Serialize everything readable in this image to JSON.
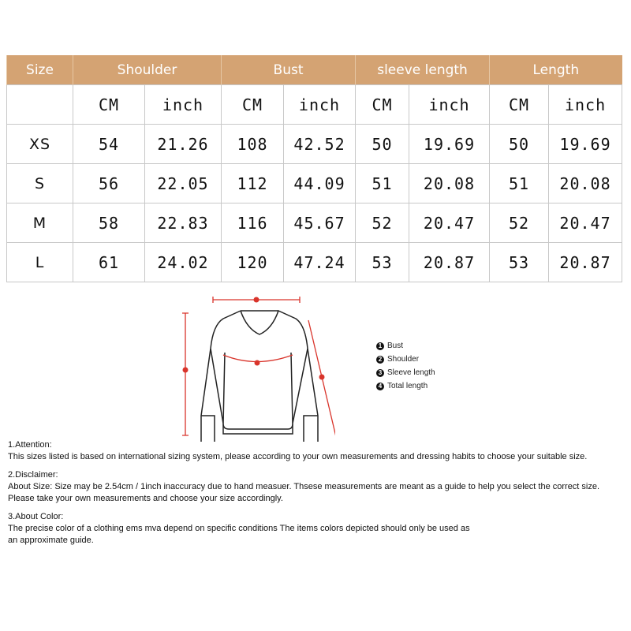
{
  "table": {
    "headers": [
      "Size",
      "Shoulder",
      "Bust",
      "sleeve length",
      "Length"
    ],
    "units": [
      "CM",
      "inch",
      "CM",
      "inch",
      "CM",
      "inch",
      "CM",
      "inch"
    ],
    "rows": [
      {
        "size": "XS",
        "values": [
          "54",
          "21.26",
          "108",
          "42.52",
          "50",
          "19.69",
          "50",
          "19.69"
        ]
      },
      {
        "size": "S",
        "values": [
          "56",
          "22.05",
          "112",
          "44.09",
          "51",
          "20.08",
          "51",
          "20.08"
        ]
      },
      {
        "size": "M",
        "values": [
          "58",
          "22.83",
          "116",
          "45.67",
          "52",
          "20.47",
          "52",
          "20.47"
        ]
      },
      {
        "size": "L",
        "values": [
          "61",
          "24.02",
          "120",
          "47.24",
          "53",
          "20.87",
          "53",
          "20.87"
        ]
      }
    ],
    "header_color": "#d4a373"
  },
  "diagram": {
    "marker_labels": [
      "1",
      "2",
      "3",
      "4"
    ],
    "legend": [
      {
        "num": "1",
        "label": "Bust"
      },
      {
        "num": "2",
        "label": "Shoulder"
      },
      {
        "num": "3",
        "label": "Sleeve length"
      },
      {
        "num": "4",
        "label": "Total length"
      }
    ],
    "measure_color": "#d9342b"
  },
  "notes": [
    {
      "title": "1.Attention:",
      "lines": [
        "This sizes listed is based on international sizing system, please according to your own measurements and dressing habits to choose your suitable size."
      ]
    },
    {
      "title": "2.Disclaimer:",
      "lines": [
        "About Size: Size may be 2.54cm / 1inch inaccuracy due to hand measuer. Thsese measurements are meant as a guide to help you select the correct size.",
        "Please take your own measurements and choose your size accordingly."
      ]
    },
    {
      "title": "3.About Color:",
      "lines": [
        "The precise color of a clothing ems mva depend on specific conditions The items colors depicted should only be used as",
        "an approximate guide."
      ]
    }
  ]
}
